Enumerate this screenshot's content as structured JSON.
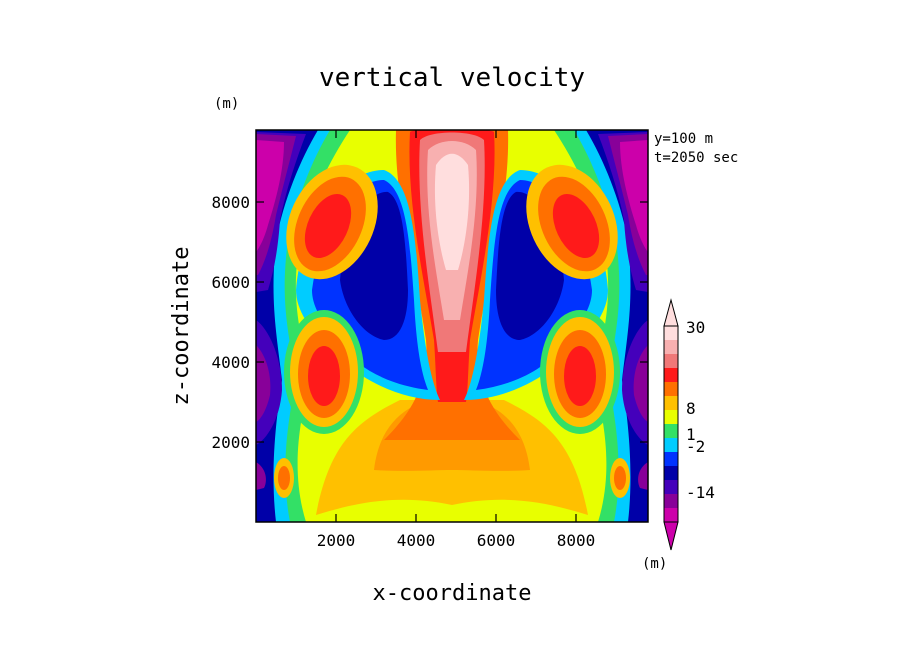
{
  "chart_data": {
    "type": "heatmap",
    "title": "vertical velocity",
    "xlabel": "x-coordinate",
    "ylabel": "z-coordinate",
    "y_unit_label": "(m)",
    "xlim": [
      0,
      9800
    ],
    "ylim": [
      0,
      9800
    ],
    "x_ticks": [
      2000,
      4000,
      6000,
      8000
    ],
    "y_ticks": [
      2000,
      4000,
      6000,
      8000
    ],
    "annotations": [
      "y=100 m",
      "t=2050 sec"
    ],
    "colorbar": {
      "unit_label": "(m)",
      "levels": [
        -20,
        -14,
        -10,
        -6,
        -2,
        -1,
        0,
        0.5,
        1,
        4,
        8,
        15,
        22,
        30
      ],
      "tick_labels": [
        "30",
        "8",
        "1",
        "-2",
        "-14"
      ],
      "tick_values": [
        30,
        8,
        1,
        -2,
        -14
      ],
      "colors": [
        "#cc00aa",
        "#880099",
        "#4400bb",
        "#0000a8",
        "#0033ff",
        "#00ccff",
        "#33e066",
        "#e8ff00",
        "#ffc000",
        "#ff7000",
        "#ff1a1a",
        "#f07878",
        "#f8b0b0",
        "#ffdede"
      ]
    }
  }
}
